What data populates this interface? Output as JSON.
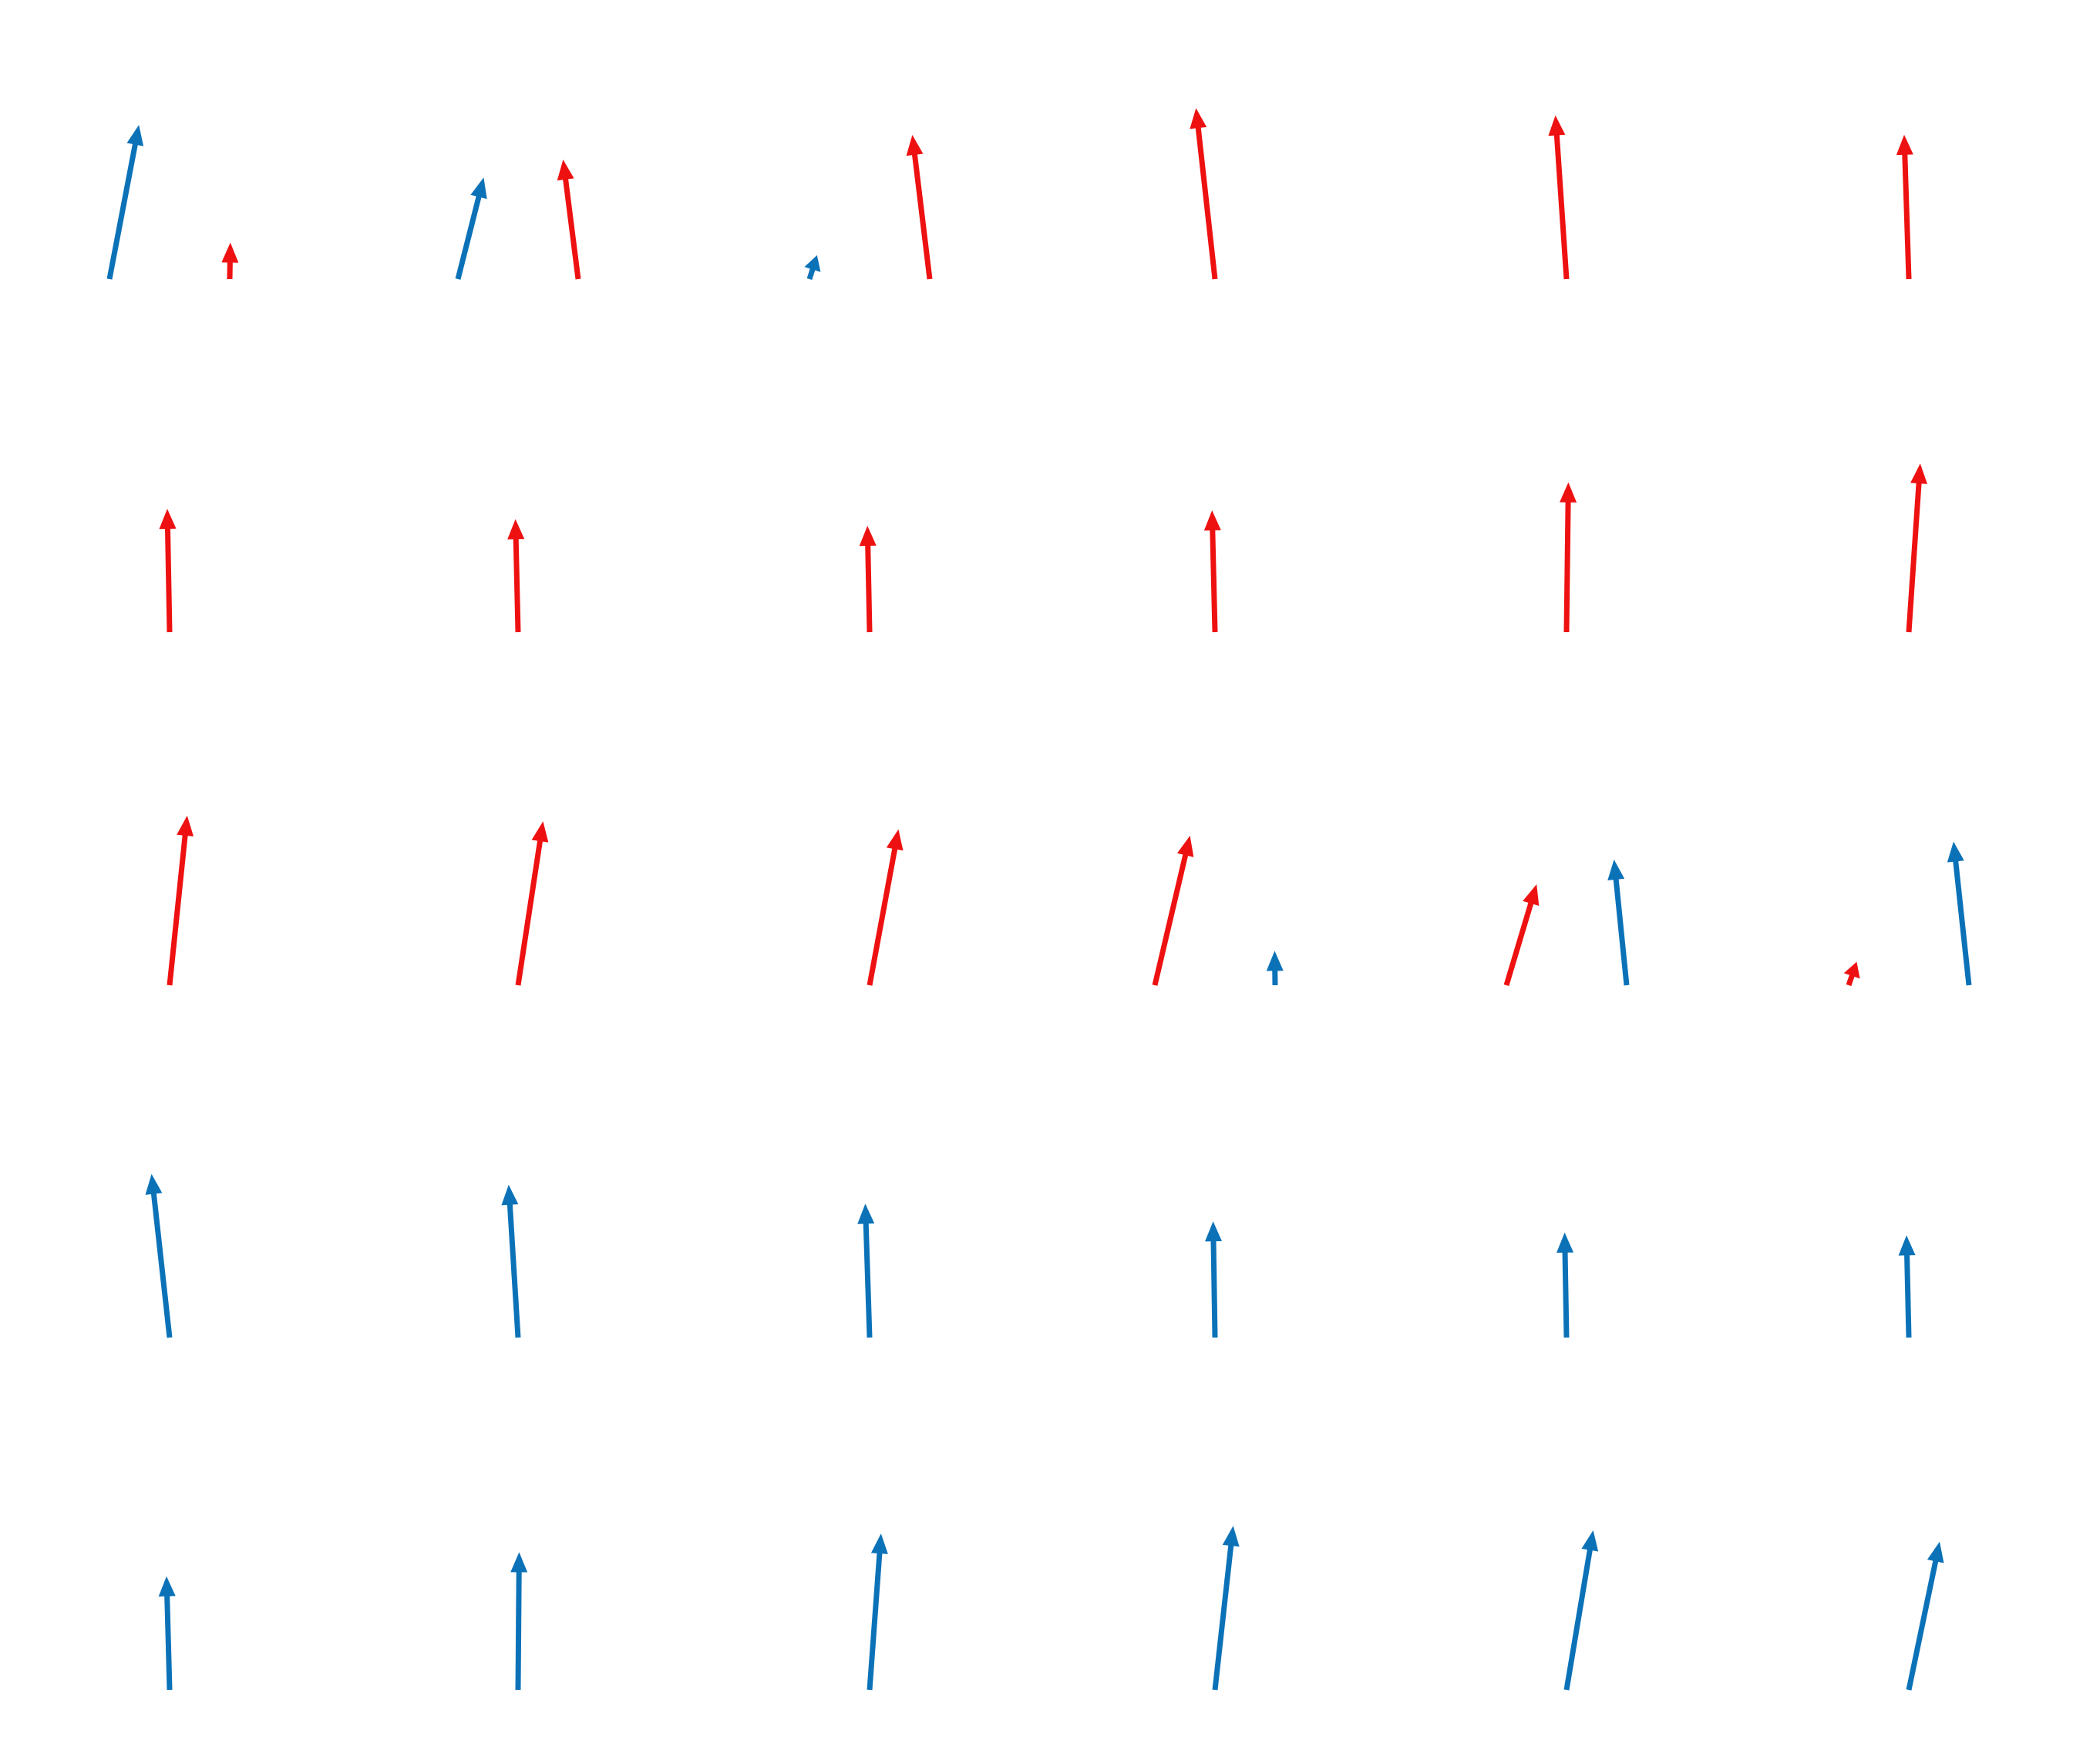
{
  "colors": {
    "background": "#ffffff",
    "red": "#ee1111",
    "blue": "#0c72b8"
  },
  "grid": {
    "rows": 5,
    "columns": 6
  },
  "cells": [
    [
      [
        {
          "color": "blue",
          "dx": 0.191,
          "dy": 1.0
        },
        {
          "color": "red",
          "dx": 0.004,
          "dy": 0.237
        }
      ],
      [
        {
          "color": "blue",
          "dx": 0.167,
          "dy": 0.659
        },
        {
          "color": "red",
          "dx": -0.098,
          "dy": 0.775
        }
      ],
      [
        {
          "color": "blue",
          "dx": 0.049,
          "dy": 0.155
        },
        {
          "color": "red",
          "dx": -0.113,
          "dy": 0.935
        }
      ],
      [
        {
          "color": "red",
          "dx": -0.123,
          "dy": 1.109
        }
      ],
      [
        {
          "color": "red",
          "dx": -0.072,
          "dy": 1.062
        }
      ],
      [
        {
          "color": "red",
          "dx": -0.03,
          "dy": 0.936
        }
      ]
    ],
    [
      [
        {
          "color": "red",
          "dx": -0.015,
          "dy": 0.8
        }
      ],
      [
        {
          "color": "red",
          "dx": -0.017,
          "dy": 0.733
        }
      ],
      [
        {
          "color": "red",
          "dx": -0.014,
          "dy": 0.69
        }
      ],
      [
        {
          "color": "red",
          "dx": -0.019,
          "dy": 0.79
        }
      ],
      [
        {
          "color": "red",
          "dx": 0.012,
          "dy": 0.972
        }
      ],
      [
        {
          "color": "red",
          "dx": 0.074,
          "dy": 1.094
        }
      ]
    ],
    [
      [
        {
          "color": "red",
          "dx": 0.114,
          "dy": 1.1
        }
      ],
      [
        {
          "color": "red",
          "dx": 0.162,
          "dy": 1.063
        }
      ],
      [
        {
          "color": "red",
          "dx": 0.187,
          "dy": 1.011
        }
      ],
      [
        {
          "color": "red",
          "dx": 0.228,
          "dy": 0.97
        },
        {
          "color": "blue",
          "dx": -0.003,
          "dy": 0.223
        }
      ],
      [
        {
          "color": "red",
          "dx": 0.196,
          "dy": 0.655
        },
        {
          "color": "blue",
          "dx": -0.082,
          "dy": 0.815
        }
      ],
      [
        {
          "color": "red",
          "dx": 0.052,
          "dy": 0.152
        },
        {
          "color": "blue",
          "dx": -0.1,
          "dy": 0.932
        }
      ]
    ],
    [
      [
        {
          "color": "blue",
          "dx": -0.117,
          "dy": 1.061
        }
      ],
      [
        {
          "color": "blue",
          "dx": -0.061,
          "dy": 0.991
        }
      ],
      [
        {
          "color": "blue",
          "dx": -0.028,
          "dy": 0.868
        }
      ],
      [
        {
          "color": "blue",
          "dx": -0.012,
          "dy": 0.754
        }
      ],
      [
        {
          "color": "blue",
          "dx": -0.012,
          "dy": 0.681
        }
      ],
      [
        {
          "color": "blue",
          "dx": -0.015,
          "dy": 0.663
        }
      ]
    ],
    [
      [
        {
          "color": "blue",
          "dx": -0.02,
          "dy": 0.737
        }
      ],
      [
        {
          "color": "blue",
          "dx": 0.007,
          "dy": 0.893
        }
      ],
      [
        {
          "color": "blue",
          "dx": 0.074,
          "dy": 1.014
        }
      ],
      [
        {
          "color": "blue",
          "dx": 0.118,
          "dy": 1.064
        }
      ],
      [
        {
          "color": "blue",
          "dx": 0.173,
          "dy": 1.035
        }
      ],
      [
        {
          "color": "blue",
          "dx": 0.2,
          "dy": 0.961
        }
      ]
    ]
  ]
}
